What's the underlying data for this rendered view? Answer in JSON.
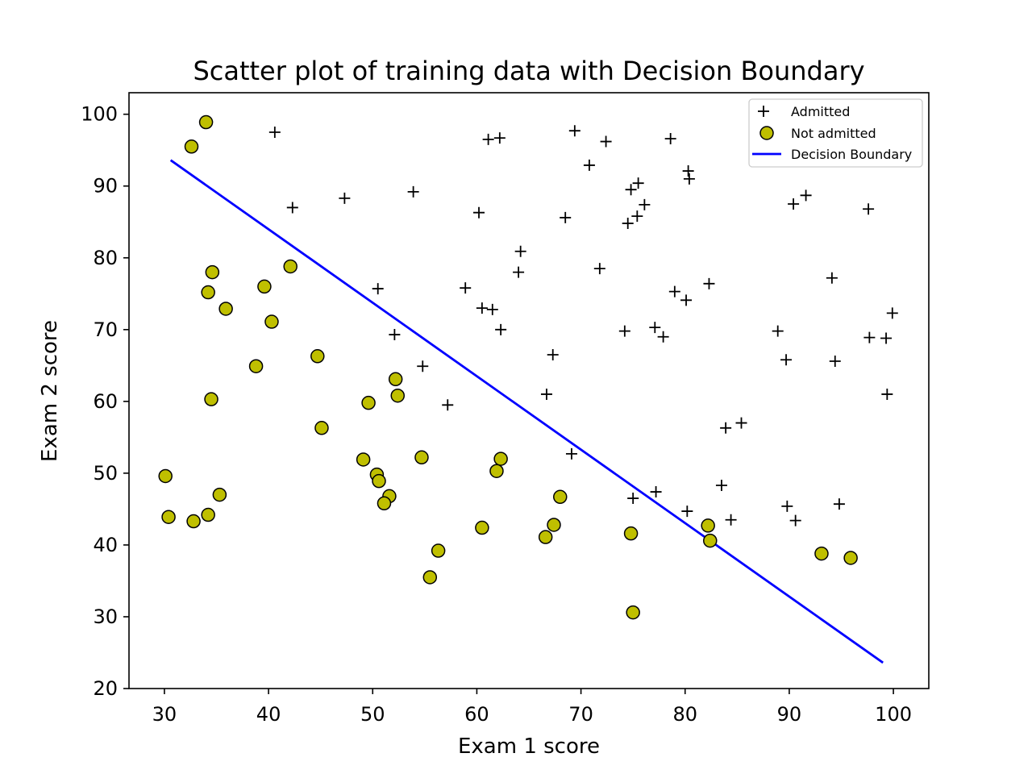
{
  "chart_data": {
    "type": "scatter",
    "title": "Scatter plot of training data with Decision Boundary",
    "xlabel": "Exam 1 score",
    "ylabel": "Exam 2 score",
    "xlim": [
      26.6,
      103.4
    ],
    "ylim": [
      20,
      103
    ],
    "xticks": [
      30,
      40,
      50,
      60,
      70,
      80,
      90,
      100
    ],
    "yticks": [
      20,
      30,
      40,
      50,
      60,
      70,
      80,
      90,
      100
    ],
    "grid": false,
    "legend_position": "top-right",
    "series": [
      {
        "name": "Admitted",
        "marker": "plus",
        "color": "#000000",
        "points": [
          [
            40.6,
            97.5
          ],
          [
            42.3,
            87.0
          ],
          [
            47.3,
            88.3
          ],
          [
            50.5,
            75.7
          ],
          [
            52.1,
            69.3
          ],
          [
            53.9,
            89.2
          ],
          [
            54.8,
            64.9
          ],
          [
            57.2,
            59.5
          ],
          [
            58.9,
            75.8
          ],
          [
            60.2,
            86.3
          ],
          [
            60.5,
            73.0
          ],
          [
            61.1,
            96.5
          ],
          [
            61.5,
            72.8
          ],
          [
            62.2,
            96.7
          ],
          [
            62.3,
            70.0
          ],
          [
            64.0,
            78.0
          ],
          [
            64.2,
            80.9
          ],
          [
            66.7,
            61.0
          ],
          [
            67.3,
            66.5
          ],
          [
            68.5,
            85.6
          ],
          [
            69.1,
            52.7
          ],
          [
            69.4,
            97.7
          ],
          [
            70.8,
            92.9
          ],
          [
            71.8,
            78.5
          ],
          [
            72.4,
            96.2
          ],
          [
            74.2,
            69.8
          ],
          [
            74.5,
            84.8
          ],
          [
            74.8,
            89.5
          ],
          [
            75.0,
            46.5
          ],
          [
            75.4,
            85.8
          ],
          [
            75.5,
            90.4
          ],
          [
            76.1,
            87.4
          ],
          [
            77.1,
            70.3
          ],
          [
            77.2,
            47.4
          ],
          [
            77.9,
            69.0
          ],
          [
            78.6,
            96.6
          ],
          [
            79.0,
            75.3
          ],
          [
            80.1,
            74.1
          ],
          [
            80.2,
            44.7
          ],
          [
            80.3,
            92.1
          ],
          [
            80.4,
            91.0
          ],
          [
            82.3,
            76.4
          ],
          [
            83.5,
            48.3
          ],
          [
            83.9,
            56.3
          ],
          [
            84.4,
            43.5
          ],
          [
            85.4,
            57.0
          ],
          [
            88.9,
            69.8
          ],
          [
            89.7,
            65.8
          ],
          [
            89.8,
            45.4
          ],
          [
            90.4,
            87.5
          ],
          [
            90.6,
            43.4
          ],
          [
            91.6,
            88.7
          ],
          [
            94.1,
            77.2
          ],
          [
            94.4,
            65.6
          ],
          [
            94.8,
            45.7
          ],
          [
            97.6,
            86.8
          ],
          [
            97.7,
            68.9
          ],
          [
            99.3,
            68.8
          ],
          [
            99.4,
            61.0
          ],
          [
            99.9,
            72.3
          ]
        ]
      },
      {
        "name": "Not admitted",
        "marker": "circle",
        "color": "#bfbf00",
        "edge_color": "#000000",
        "points": [
          [
            34.0,
            98.9
          ],
          [
            32.6,
            95.5
          ],
          [
            42.1,
            78.8
          ],
          [
            34.6,
            78.0
          ],
          [
            39.6,
            76.0
          ],
          [
            34.2,
            75.2
          ],
          [
            35.9,
            72.9
          ],
          [
            40.3,
            71.1
          ],
          [
            44.7,
            66.3
          ],
          [
            38.8,
            64.9
          ],
          [
            52.2,
            63.1
          ],
          [
            52.4,
            60.8
          ],
          [
            34.5,
            60.3
          ],
          [
            49.6,
            59.8
          ],
          [
            45.1,
            56.3
          ],
          [
            54.7,
            52.2
          ],
          [
            62.3,
            52.0
          ],
          [
            49.1,
            51.9
          ],
          [
            61.9,
            50.3
          ],
          [
            50.4,
            49.8
          ],
          [
            30.1,
            49.6
          ],
          [
            50.6,
            48.9
          ],
          [
            35.3,
            47.0
          ],
          [
            51.6,
            46.8
          ],
          [
            68.0,
            46.7
          ],
          [
            51.1,
            45.8
          ],
          [
            34.2,
            44.2
          ],
          [
            30.4,
            43.9
          ],
          [
            32.8,
            43.3
          ],
          [
            82.2,
            42.7
          ],
          [
            67.4,
            42.8
          ],
          [
            60.5,
            42.4
          ],
          [
            74.8,
            41.6
          ],
          [
            66.6,
            41.1
          ],
          [
            82.4,
            40.6
          ],
          [
            56.3,
            39.2
          ],
          [
            93.1,
            38.8
          ],
          [
            95.9,
            38.2
          ],
          [
            55.5,
            35.5
          ],
          [
            75.0,
            30.6
          ]
        ]
      },
      {
        "name": "Decision Boundary",
        "marker": "line",
        "color": "#0000ff",
        "points": [
          [
            30.6,
            93.6
          ],
          [
            99.0,
            23.6
          ]
        ]
      }
    ]
  }
}
